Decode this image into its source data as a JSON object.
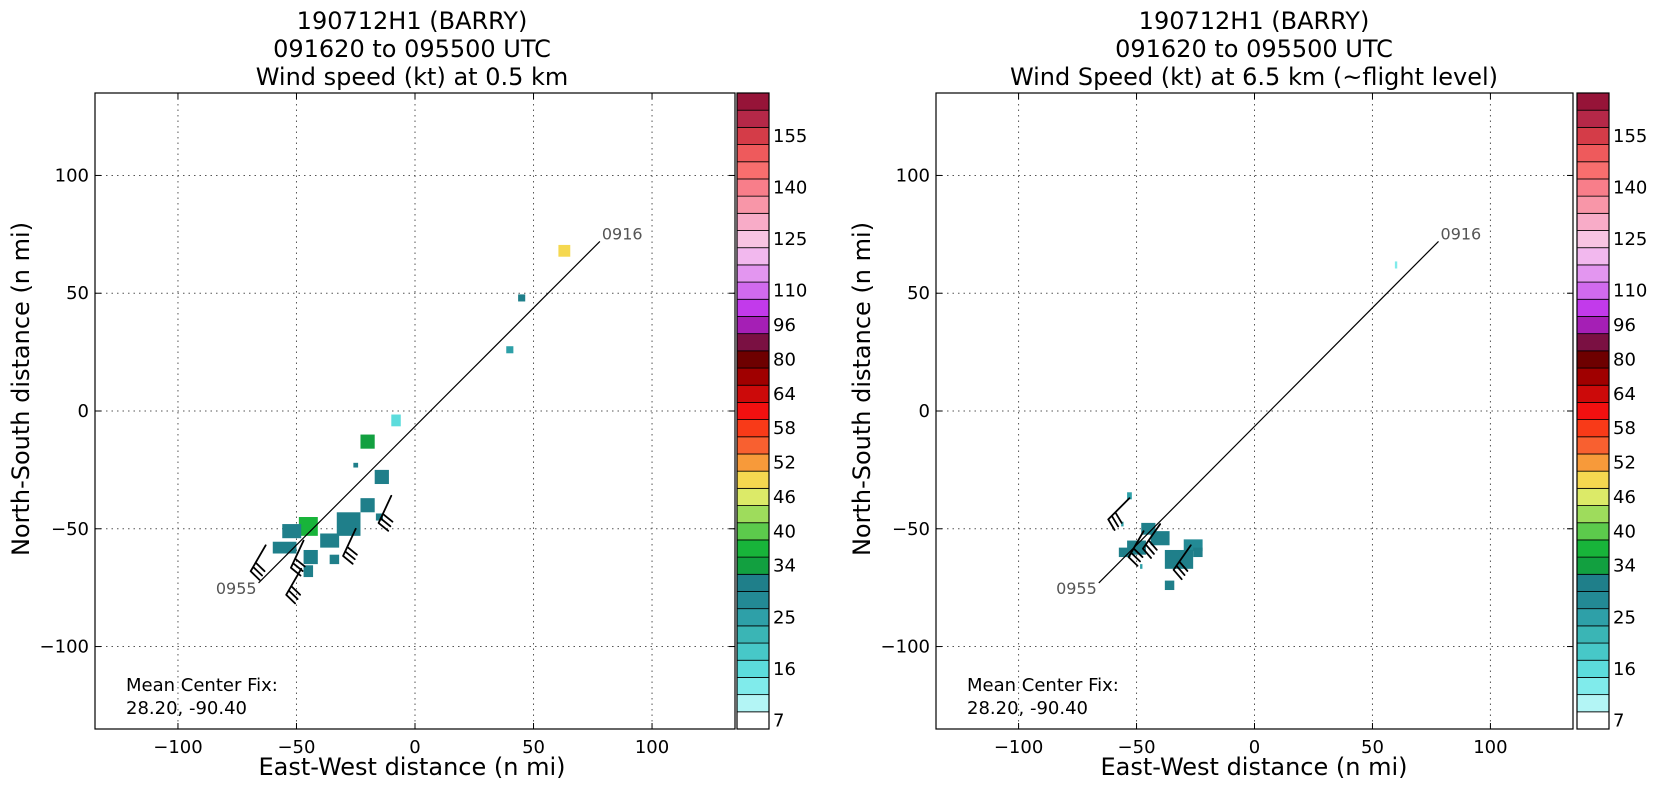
{
  "chart_data": [
    {
      "type": "heatmap",
      "title_lines": [
        "190712H1 (BARRY)",
        "091620 to 095500 UTC",
        "Wind speed (kt) at 0.5 km"
      ],
      "xlabel": "East-West distance (n mi)",
      "ylabel": "North-South distance (n mi)",
      "xlim": [
        -135,
        135
      ],
      "ylim": [
        -135,
        135
      ],
      "xticks": [
        -100,
        -50,
        0,
        50,
        100
      ],
      "yticks": [
        -100,
        -50,
        0,
        50,
        100
      ],
      "grid": true,
      "track": {
        "start": [
          78,
          72
        ],
        "end": [
          -66,
          -73
        ],
        "start_label": "0916",
        "end_label": "0955"
      },
      "annotation_lines": [
        "Mean Center Fix:",
        "28.20, -90.40"
      ],
      "cells": [
        {
          "x": 63,
          "y": 68,
          "w": 5,
          "h": 5,
          "v": 46
        },
        {
          "x": 45,
          "y": 48,
          "w": 3,
          "h": 3,
          "v": 29
        },
        {
          "x": 40,
          "y": 26,
          "w": 3,
          "h": 3,
          "v": 22
        },
        {
          "x": -8,
          "y": -4,
          "w": 4,
          "h": 5,
          "v": 14
        },
        {
          "x": -20,
          "y": -13,
          "w": 6,
          "h": 6,
          "v": 31
        },
        {
          "x": -25,
          "y": -23,
          "w": 2,
          "h": 2,
          "v": 29
        },
        {
          "x": -14,
          "y": -28,
          "w": 6,
          "h": 6,
          "v": 28
        },
        {
          "x": -20,
          "y": -40,
          "w": 6,
          "h": 6,
          "v": 28
        },
        {
          "x": -28,
          "y": -48,
          "w": 10,
          "h": 10,
          "v": 28
        },
        {
          "x": -36,
          "y": -55,
          "w": 8,
          "h": 6,
          "v": 29
        },
        {
          "x": -45,
          "y": -49,
          "w": 8,
          "h": 8,
          "v": 34
        },
        {
          "x": -52,
          "y": -51,
          "w": 8,
          "h": 6,
          "v": 28
        },
        {
          "x": -55,
          "y": -58,
          "w": 10,
          "h": 5,
          "v": 28
        },
        {
          "x": -44,
          "y": -62,
          "w": 6,
          "h": 6,
          "v": 29
        },
        {
          "x": -45,
          "y": -68,
          "w": 4,
          "h": 5,
          "v": 28
        },
        {
          "x": -34,
          "y": -63,
          "w": 4,
          "h": 4,
          "v": 29
        },
        {
          "x": -15,
          "y": -45,
          "w": 3,
          "h": 3,
          "v": 28
        }
      ],
      "barbs": [
        {
          "x": -10,
          "y": -36,
          "dir": 205,
          "v": 30
        },
        {
          "x": -25,
          "y": -50,
          "dir": 205,
          "v": 30
        },
        {
          "x": -47,
          "y": -55,
          "dir": 205,
          "v": 30
        },
        {
          "x": -63,
          "y": -57,
          "dir": 210,
          "v": 30
        },
        {
          "x": -48,
          "y": -67,
          "dir": 210,
          "v": 30
        }
      ]
    },
    {
      "type": "heatmap",
      "title_lines": [
        "190712H1 (BARRY)",
        "091620 to 095500 UTC",
        "Wind Speed (kt) at 6.5 km (~flight level)"
      ],
      "xlabel": "East-West distance (n mi)",
      "ylabel": "North-South distance (n mi)",
      "xlim": [
        -135,
        135
      ],
      "ylim": [
        -135,
        135
      ],
      "xticks": [
        -100,
        -50,
        0,
        50,
        100
      ],
      "yticks": [
        -100,
        -50,
        0,
        50,
        100
      ],
      "grid": true,
      "track": {
        "start": [
          78,
          72
        ],
        "end": [
          -66,
          -73
        ],
        "start_label": "0916",
        "end_label": "0955"
      },
      "annotation_lines": [
        "Mean Center Fix:",
        "28.20, -90.40"
      ],
      "cells": [
        {
          "x": 60,
          "y": 62,
          "w": 1,
          "h": 3,
          "v": 12
        },
        {
          "x": -53,
          "y": -36,
          "w": 2,
          "h": 3,
          "v": 22
        },
        {
          "x": -56,
          "y": -48,
          "w": 1,
          "h": 2,
          "v": 22
        },
        {
          "x": -45,
          "y": -50,
          "w": 6,
          "h": 5,
          "v": 28
        },
        {
          "x": -40,
          "y": -54,
          "w": 8,
          "h": 6,
          "v": 28
        },
        {
          "x": -50,
          "y": -58,
          "w": 8,
          "h": 6,
          "v": 29
        },
        {
          "x": -55,
          "y": -60,
          "w": 5,
          "h": 4,
          "v": 29
        },
        {
          "x": -26,
          "y": -57,
          "w": 8,
          "h": 5,
          "v": 25
        },
        {
          "x": -32,
          "y": -63,
          "w": 12,
          "h": 8,
          "v": 29
        },
        {
          "x": -24,
          "y": -60,
          "w": 4,
          "h": 4,
          "v": 28
        },
        {
          "x": -36,
          "y": -74,
          "w": 4,
          "h": 4,
          "v": 29
        },
        {
          "x": -48,
          "y": -66,
          "w": 1,
          "h": 2,
          "v": 22
        }
      ],
      "barbs": [
        {
          "x": -53,
          "y": -37,
          "dir": 225,
          "v": 30
        },
        {
          "x": -40,
          "y": -48,
          "dir": 215,
          "v": 30
        },
        {
          "x": -47,
          "y": -51,
          "dir": 210,
          "v": 30
        },
        {
          "x": -27,
          "y": -57,
          "dir": 215,
          "v": 30
        }
      ]
    }
  ],
  "colorbar": {
    "bounds": [
      7,
      10,
      13,
      16,
      19,
      22,
      25,
      28,
      31,
      34,
      37,
      40,
      43,
      46,
      49,
      52,
      55,
      58,
      61,
      64,
      72,
      80,
      88,
      96,
      104,
      110,
      115,
      120,
      125,
      130,
      135,
      140,
      145,
      150,
      155,
      160
    ],
    "tick_labels": [
      "7",
      "16",
      "25",
      "34",
      "40",
      "46",
      "52",
      "58",
      "64",
      "80",
      "96",
      "110",
      "125",
      "140",
      "155"
    ],
    "colors": [
      "#ffffff",
      "#b3f5f5",
      "#80ebeb",
      "#5cdcdc",
      "#47c8c8",
      "#3ab5b5",
      "#2ea0a8",
      "#238a95",
      "#1f7f8a",
      "#12a040",
      "#18b43a",
      "#5cca4c",
      "#9edc5c",
      "#dcea68",
      "#f5d850",
      "#f79a3a",
      "#f86030",
      "#f83a18",
      "#f21010",
      "#cc0a0a",
      "#a00000",
      "#6e0000",
      "#7a1042",
      "#a51fb5",
      "#c23aeb",
      "#d16aee",
      "#e396f0",
      "#f2b8ee",
      "#f8c4e2",
      "#f8acc8",
      "#f896a8",
      "#f87e8a",
      "#f86e6e",
      "#ee5a5c",
      "#d43c48",
      "#b52848",
      "#961438"
    ]
  }
}
